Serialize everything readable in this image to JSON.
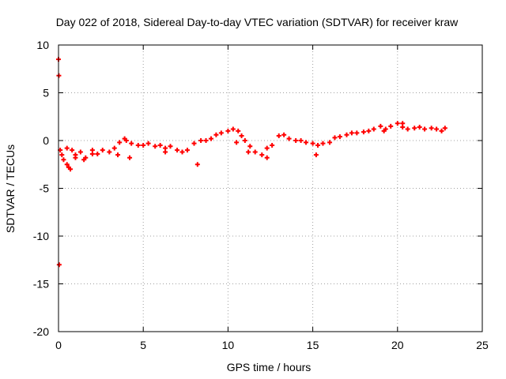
{
  "chart_data": {
    "type": "scatter",
    "title": "Day 022 of 2018, Sidereal Day-to-day VTEC variation (SDTVAR) for receiver kraw",
    "xlabel": "GPS time / hours",
    "ylabel": "SDTVAR / TECUs",
    "xlim": [
      0,
      25
    ],
    "ylim": [
      -20,
      10
    ],
    "x_ticks": [
      0,
      5,
      10,
      15,
      20,
      25
    ],
    "y_ticks": [
      -20,
      -15,
      -10,
      -5,
      0,
      5,
      10
    ],
    "x_tick_labels": [
      "0",
      "5",
      "10",
      "15",
      "20",
      "25"
    ],
    "y_tick_labels": [
      "-20",
      "-15",
      "-10",
      "-5",
      "0",
      "5",
      "10"
    ],
    "grid": true,
    "series": [
      {
        "name": "SDTVAR",
        "color": "#ff0000",
        "marker": "plus",
        "x": [
          0.0,
          0.02,
          0.04,
          0.1,
          0.2,
          0.3,
          0.5,
          0.6,
          0.8,
          1.0,
          1.3,
          1.6,
          2.0,
          2.3,
          2.6,
          3.0,
          3.3,
          3.6,
          3.9,
          4.0,
          4.3,
          4.7,
          5.0,
          5.3,
          5.7,
          6.0,
          6.3,
          6.6,
          7.0,
          7.3,
          7.6,
          8.0,
          8.2,
          8.4,
          8.7,
          9.0,
          9.3,
          9.6,
          10.0,
          10.3,
          10.6,
          10.8,
          11.0,
          11.3,
          11.6,
          12.0,
          12.3,
          12.6,
          13.0,
          13.3,
          13.6,
          14.0,
          14.3,
          14.6,
          15.0,
          15.3,
          15.6,
          16.0,
          16.3,
          16.6,
          17.0,
          17.3,
          17.6,
          18.0,
          18.3,
          18.6,
          19.0,
          19.3,
          19.6,
          20.0,
          20.3,
          20.6,
          21.0,
          21.3,
          21.6,
          22.0,
          22.3,
          22.6,
          22.8,
          0.5,
          0.7,
          1.0,
          1.5,
          2.0,
          3.5,
          4.2,
          6.3,
          10.5,
          11.2,
          12.3,
          15.2,
          19.2,
          20.3
        ],
        "y": [
          8.5,
          6.8,
          -13.0,
          -1.0,
          -1.5,
          -2.0,
          -0.8,
          -2.8,
          -1.0,
          -1.5,
          -1.2,
          -1.8,
          -1.0,
          -1.4,
          -1.0,
          -1.2,
          -0.8,
          -0.2,
          0.2,
          0.0,
          -0.3,
          -0.5,
          -0.5,
          -0.3,
          -0.6,
          -0.5,
          -0.8,
          -0.6,
          -1.0,
          -1.2,
          -1.0,
          -0.3,
          -2.5,
          0.0,
          0.0,
          0.2,
          0.6,
          0.8,
          1.0,
          1.2,
          1.0,
          0.5,
          0.0,
          -0.6,
          -1.2,
          -1.5,
          -0.8,
          -0.5,
          0.5,
          0.6,
          0.2,
          0.0,
          0.0,
          -0.2,
          -0.3,
          -0.5,
          -0.3,
          -0.2,
          0.3,
          0.4,
          0.6,
          0.8,
          0.8,
          0.9,
          1.0,
          1.2,
          1.5,
          1.2,
          1.5,
          1.8,
          1.4,
          1.2,
          1.3,
          1.4,
          1.2,
          1.3,
          1.2,
          1.0,
          1.3,
          -2.5,
          -3.0,
          -1.8,
          -2.0,
          -1.4,
          -1.5,
          -1.8,
          -1.2,
          -0.2,
          -1.2,
          -1.8,
          -1.5,
          1.0,
          1.8
        ]
      }
    ]
  }
}
